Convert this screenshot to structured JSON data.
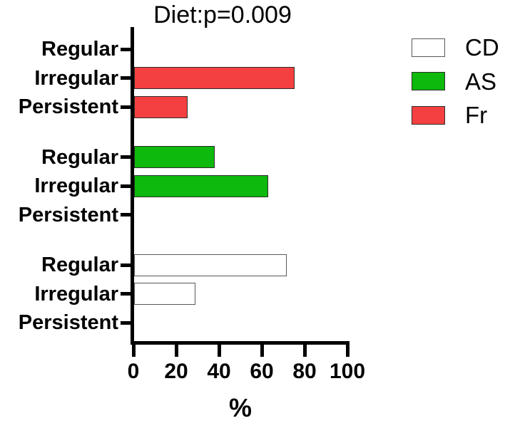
{
  "chart_data": {
    "type": "bar",
    "orientation": "horizontal",
    "title": "Diet:p=0.009",
    "xlabel": "%",
    "xlim": [
      0,
      100
    ],
    "xticks": [
      0,
      20,
      40,
      60,
      80,
      100
    ],
    "grid": false,
    "categories": [
      "Regular",
      "Irregular",
      "Persistent"
    ],
    "series": [
      {
        "name": "Fr",
        "color": "#f44040",
        "edge": "#2d2d2d",
        "values": [
          0,
          75,
          25
        ]
      },
      {
        "name": "AS",
        "color": "#0cb90c",
        "edge": "#2d2d2d",
        "values": [
          37.5,
          62.5,
          0
        ]
      },
      {
        "name": "CD",
        "color": "#ffffff",
        "edge": "#595959",
        "values": [
          71.4,
          28.6,
          0
        ]
      }
    ],
    "note": "series listed top-to-bottom as drawn; each series is a group of three rows labeled Regular/Irregular/Persistent",
    "legend_position": "top-right",
    "legend": [
      {
        "label": "CD",
        "color": "#ffffff",
        "edge": "#595959"
      },
      {
        "label": "AS",
        "color": "#0cb90c",
        "edge": "#2d2d2d"
      },
      {
        "label": "Fr",
        "color": "#f44040",
        "edge": "#2d2d2d"
      }
    ]
  }
}
